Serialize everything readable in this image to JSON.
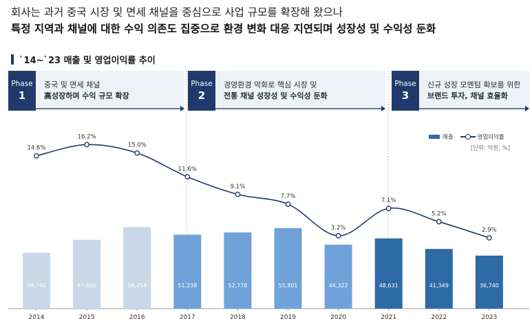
{
  "heading": {
    "line1": "회사는 과거 중국 시장 및 면세 채널을 중심으로 사업 규모를 확장해 왔으나",
    "line2": "특정 지역과 채널에 대한 수익 의존도 집중으로 환경 변화 대응 지연되며 성장성 및 수익성 둔화"
  },
  "section_title": "`14~`23 매출 및 영업이익률 추이",
  "phases": [
    {
      "label": "Phase",
      "number": "1",
      "line1": "중국 및 면세 채널",
      "line2": "高성장하며 수익 규모 확장"
    },
    {
      "label": "Phase",
      "number": "2",
      "line1": "경영환경 악화로 핵심 시장 및",
      "line2": "전통 채널 성장성 및 수익성 둔화"
    },
    {
      "label": "Phase",
      "number": "3",
      "line1": "신규 성장 모멘텀 확보를 위한",
      "line2": "브랜드 투자, 채널 효율화"
    }
  ],
  "legend": {
    "bar": "매출",
    "line": "영업이익률"
  },
  "unit": "[단위: 억원, %]",
  "colors": {
    "phase1_bar": "#c8d8e8",
    "phase2_bar": "#6fa2d8",
    "phase3_bar": "#2d6aa6",
    "line": "#1f3a6b",
    "accent": "#1f3a6b"
  },
  "chart_data": {
    "type": "bar",
    "categories": [
      "2014",
      "2015",
      "2016",
      "2017",
      "2018",
      "2019",
      "2020",
      "2021",
      "2022",
      "2023"
    ],
    "series": [
      {
        "name": "매출",
        "type": "bar",
        "values": [
          38740,
          47666,
          56454,
          51238,
          52778,
          55801,
          44322,
          48631,
          41349,
          36740
        ],
        "labels": [
          "38,740",
          "47,666",
          "56,454",
          "51,238",
          "52,778",
          "55,801",
          "44,322",
          "48,631",
          "41,349",
          "36,740"
        ]
      },
      {
        "name": "영업이익률",
        "type": "line",
        "values": [
          14.6,
          16.2,
          15.0,
          11.6,
          9.1,
          7.7,
          3.2,
          7.1,
          5.2,
          2.9
        ],
        "labels": [
          "14.6%",
          "16.2%",
          "15.0%",
          "11.6%",
          "9.1%",
          "7.7%",
          "3.2%",
          "7.1%",
          "5.2%",
          "2.9%"
        ]
      }
    ],
    "phase_of_year": [
      1,
      1,
      1,
      2,
      2,
      2,
      2,
      3,
      3,
      3
    ]
  }
}
